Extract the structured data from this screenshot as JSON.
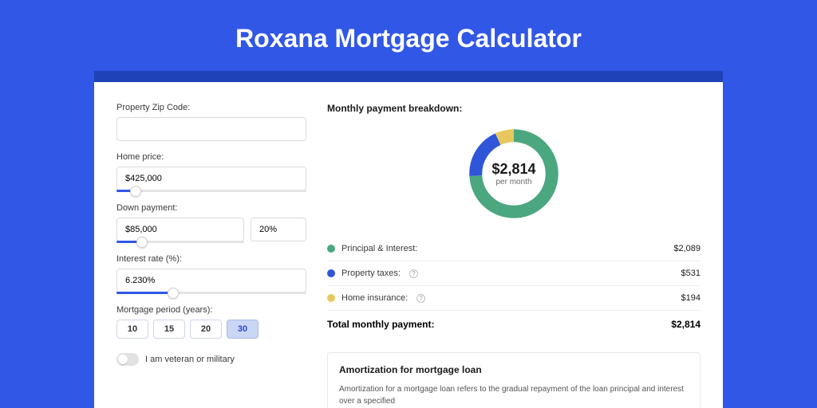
{
  "page": {
    "title": "Roxana Mortgage Calculator"
  },
  "colors": {
    "page_bg": "#3157e6",
    "panel_frame": "#1f42b8",
    "slider_fill": "#3157e6",
    "period_selected_bg": "#c9d6f4",
    "period_selected_text": "#2a4ac7"
  },
  "form": {
    "zip": {
      "label": "Property Zip Code:",
      "value": ""
    },
    "home_price": {
      "label": "Home price:",
      "value": "$425,000",
      "slider_pct": 10
    },
    "down_payment": {
      "label": "Down payment:",
      "amount": "$85,000",
      "pct": "20%",
      "slider_pct": 20
    },
    "interest": {
      "label": "Interest rate (%):",
      "value": "6.230%",
      "slider_pct": 30
    },
    "period": {
      "label": "Mortgage period (years):",
      "options": [
        "10",
        "15",
        "20",
        "30"
      ],
      "selected": "30"
    },
    "veteran": {
      "label": "I am veteran or military",
      "on": false
    }
  },
  "breakdown": {
    "title": "Monthly payment breakdown:",
    "center_amount": "$2,814",
    "center_sub": "per month",
    "donut": {
      "size": 126,
      "stroke": 16,
      "series": [
        {
          "label": "Principal & Interest:",
          "value": "$2,089",
          "pct": 74,
          "color": "#4ba77f",
          "help": false
        },
        {
          "label": "Property taxes:",
          "value": "$531",
          "pct": 19,
          "color": "#2f55d9",
          "help": true
        },
        {
          "label": "Home insurance:",
          "value": "$194",
          "pct": 7,
          "color": "#e8c85e",
          "help": true
        }
      ]
    },
    "total": {
      "label": "Total monthly payment:",
      "value": "$2,814"
    }
  },
  "amortization": {
    "title": "Amortization for mortgage loan",
    "text": "Amortization for a mortgage loan refers to the gradual repayment of the loan principal and interest over a specified"
  }
}
